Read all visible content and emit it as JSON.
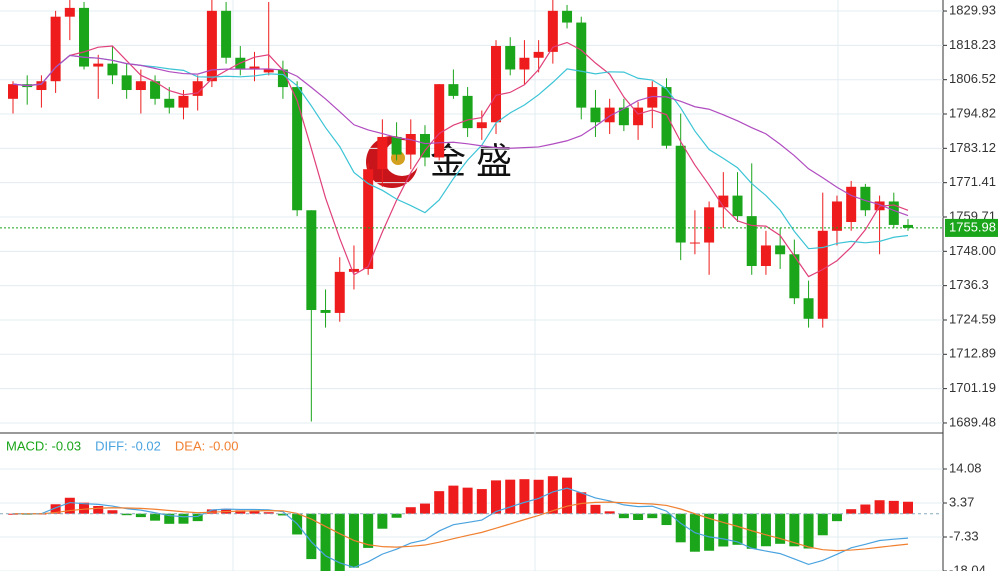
{
  "chart_data": {
    "type": "candlestick",
    "watermark": "金 盛",
    "up_color": "#ee1c1c",
    "down_color": "#1aa51a",
    "grid": true,
    "ylim": [
      1686.4,
      1833.69
    ],
    "yticks": [
      1829.93,
      1818.23,
      1806.52,
      1794.82,
      1783.12,
      1771.41,
      1759.71,
      {
        "value": 1748,
        "label": "1748.00"
      },
      1736.3,
      1724.59,
      1712.89,
      1701.19,
      1689.48
    ],
    "last_price": {
      "value": 1755.98,
      "label": "1755.98"
    },
    "ma": [
      {
        "period": 5,
        "color": "#e0407a"
      },
      {
        "period": 10,
        "color": "#3cc4d6"
      },
      {
        "period": 20,
        "color": "#b04cc0"
      }
    ],
    "candles": [
      [
        1800,
        1806,
        1795,
        1805
      ],
      [
        1805,
        1808,
        1798,
        1804
      ],
      [
        1803,
        1808,
        1797,
        1806
      ],
      [
        1806,
        1830,
        1802,
        1828
      ],
      [
        1828,
        1834,
        1820,
        1831
      ],
      [
        1831,
        1833,
        1810,
        1811
      ],
      [
        1811,
        1815,
        1800,
        1812
      ],
      [
        1812,
        1818,
        1805,
        1808
      ],
      [
        1808,
        1812,
        1800,
        1803
      ],
      [
        1803,
        1810,
        1795,
        1806
      ],
      [
        1806,
        1808,
        1798,
        1800
      ],
      [
        1800,
        1804,
        1795,
        1797
      ],
      [
        1797,
        1803,
        1793,
        1801
      ],
      [
        1801,
        1808,
        1796,
        1806
      ],
      [
        1806,
        1834,
        1804,
        1830
      ],
      [
        1830,
        1833,
        1812,
        1814
      ],
      [
        1814,
        1818,
        1808,
        1810
      ],
      [
        1810,
        1816,
        1806,
        1811
      ],
      [
        1809,
        1833,
        1808,
        1810
      ],
      [
        1810,
        1813,
        1800,
        1804
      ],
      [
        1804,
        1806,
        1760,
        1762
      ],
      [
        1762,
        1762,
        1690,
        1728
      ],
      [
        1728,
        1735,
        1722,
        1727
      ],
      [
        1727,
        1746,
        1724,
        1741
      ],
      [
        1741,
        1750,
        1735,
        1742
      ],
      [
        1742,
        1778,
        1740,
        1776
      ],
      [
        1776,
        1793,
        1770,
        1787
      ],
      [
        1787,
        1792,
        1779,
        1781
      ],
      [
        1781,
        1793,
        1776,
        1788
      ],
      [
        1788,
        1791,
        1777,
        1780
      ],
      [
        1780,
        1805,
        1779,
        1805
      ],
      [
        1805,
        1810,
        1800,
        1801
      ],
      [
        1801,
        1804,
        1787,
        1790
      ],
      [
        1790,
        1796,
        1786,
        1792
      ],
      [
        1792,
        1820,
        1788,
        1818
      ],
      [
        1818,
        1821,
        1808,
        1810
      ],
      [
        1810,
        1820,
        1805,
        1814
      ],
      [
        1814,
        1820,
        1809,
        1816
      ],
      [
        1816,
        1834,
        1812,
        1830
      ],
      [
        1830,
        1832,
        1824,
        1826
      ],
      [
        1826,
        1828,
        1793,
        1797
      ],
      [
        1797,
        1803,
        1787,
        1792
      ],
      [
        1792,
        1800,
        1788,
        1797
      ],
      [
        1797,
        1800,
        1789,
        1791
      ],
      [
        1791,
        1799,
        1786,
        1797
      ],
      [
        1797,
        1806,
        1790,
        1804
      ],
      [
        1804,
        1807,
        1783,
        1784
      ],
      [
        1784,
        1795,
        1745,
        1751
      ],
      [
        1751,
        1762,
        1747,
        1751
      ],
      [
        1751,
        1765,
        1740,
        1763
      ],
      [
        1763,
        1775,
        1756,
        1767
      ],
      [
        1767,
        1775,
        1758,
        1760
      ],
      [
        1760,
        1778,
        1740,
        1743
      ],
      [
        1743,
        1755,
        1740,
        1750
      ],
      [
        1750,
        1756,
        1742,
        1747
      ],
      [
        1747,
        1752,
        1730,
        1732
      ],
      [
        1732,
        1738,
        1722,
        1725
      ],
      [
        1725,
        1768,
        1722,
        1755
      ],
      [
        1755,
        1767,
        1750,
        1765
      ],
      [
        1758,
        1772,
        1755,
        1770
      ],
      [
        1770,
        1771,
        1760,
        1762
      ],
      [
        1762,
        1767,
        1747,
        1765
      ],
      [
        1765,
        1768,
        1756,
        1757
      ],
      [
        1757,
        1759,
        1755,
        1756
      ]
    ],
    "macd": {
      "legend": [
        {
          "text": "MACD: -0.03",
          "color": "#1aa51a"
        },
        {
          "text": "DIFF: -0.02",
          "color": "#4aa3df"
        },
        {
          "text": "DEA: -0.00",
          "color": "#f08030"
        }
      ],
      "diff_color": "#4aa3df",
      "dea_color": "#f08030",
      "ylim": [
        -18.04,
        24.47
      ],
      "yticks": [
        14.08,
        3.37,
        -7.33,
        -18.04
      ]
    }
  }
}
